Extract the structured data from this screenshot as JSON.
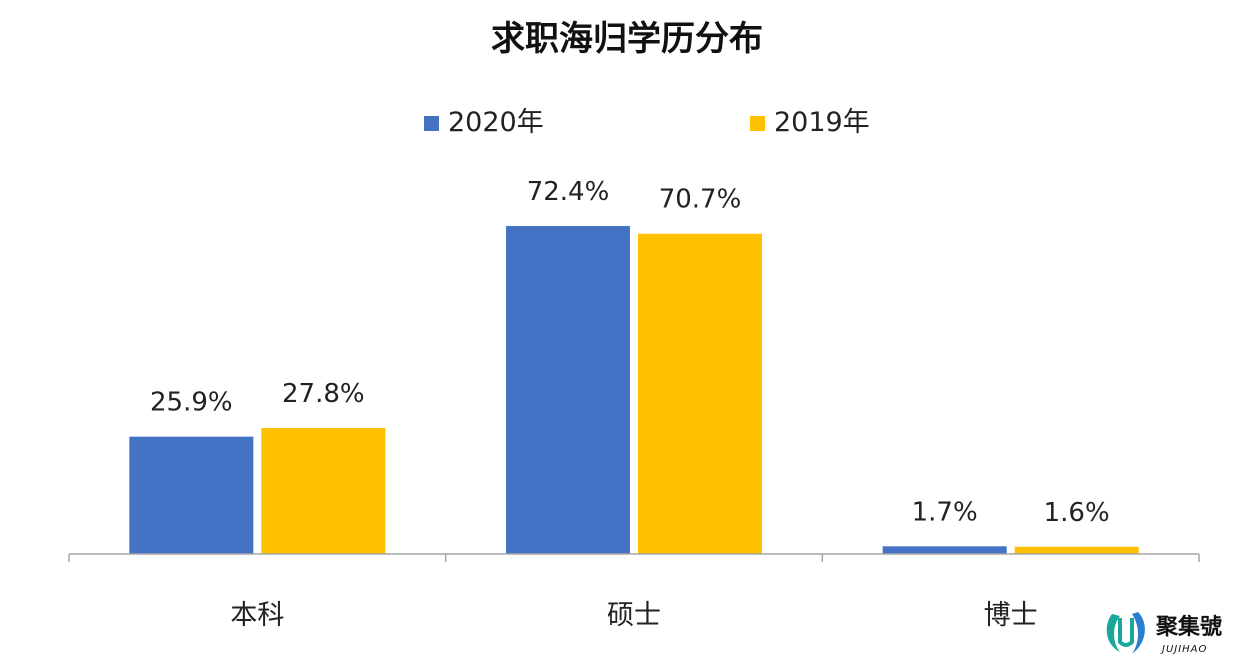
{
  "chart_data": {
    "type": "bar",
    "title": "求职海归学历分布",
    "categories": [
      "本科",
      "硕士",
      "博士"
    ],
    "series": [
      {
        "name": "2020年",
        "color": "#4472C4",
        "values": [
          25.9,
          72.4,
          1.7
        ],
        "labels": [
          "25.9%",
          "72.4%",
          "1.7%"
        ]
      },
      {
        "name": "2019年",
        "color": "#FFC000",
        "values": [
          27.8,
          70.7,
          1.6
        ],
        "labels": [
          "27.8%",
          "70.7%",
          "1.6%"
        ]
      }
    ],
    "ylim": [
      0,
      100
    ],
    "grid": false,
    "legend_position": "top"
  },
  "watermark": {
    "name": "聚集號",
    "sub": "JUJIHAO",
    "colors": [
      "#1aa89a",
      "#2a7fd0"
    ]
  }
}
